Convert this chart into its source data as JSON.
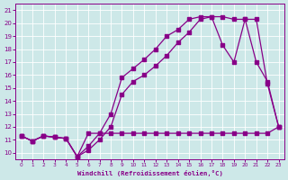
{
  "xlabel": "Windchill (Refroidissement éolien,°C)",
  "xlim": [
    -0.5,
    23.5
  ],
  "ylim": [
    9.5,
    21.5
  ],
  "xticks": [
    0,
    1,
    2,
    3,
    4,
    5,
    6,
    7,
    8,
    9,
    10,
    11,
    12,
    13,
    14,
    15,
    16,
    17,
    18,
    19,
    20,
    21,
    22,
    23
  ],
  "yticks": [
    10,
    11,
    12,
    13,
    14,
    15,
    16,
    17,
    18,
    19,
    20,
    21
  ],
  "bg_color": "#cde8e8",
  "line_color": "#880088",
  "grid_color": "#b8d8d8",
  "line1_x": [
    0,
    1,
    2,
    3,
    4,
    5,
    6,
    7,
    8,
    9,
    10,
    11,
    12,
    13,
    14,
    15,
    16,
    17,
    18,
    19,
    20,
    21,
    22,
    23
  ],
  "line1_y": [
    11.3,
    10.9,
    11.3,
    11.2,
    11.1,
    9.7,
    11.5,
    11.5,
    11.5,
    11.5,
    11.5,
    11.5,
    11.5,
    11.5,
    11.5,
    11.5,
    11.5,
    11.5,
    11.5,
    11.5,
    11.5,
    11.5,
    11.5,
    12.0
  ],
  "line2_x": [
    0,
    1,
    2,
    3,
    4,
    5,
    6,
    7,
    8,
    9,
    10,
    11,
    12,
    13,
    14,
    15,
    16,
    17,
    18,
    19,
    20,
    21,
    22,
    23
  ],
  "line2_y": [
    11.3,
    10.9,
    11.3,
    11.2,
    11.1,
    9.7,
    10.5,
    11.5,
    13.0,
    15.8,
    16.5,
    17.2,
    18.0,
    19.0,
    19.5,
    20.3,
    20.5,
    20.5,
    20.5,
    20.3,
    20.3,
    17.0,
    15.5,
    12.0
  ],
  "line3_x": [
    0,
    1,
    2,
    3,
    4,
    5,
    6,
    7,
    8,
    9,
    10,
    11,
    12,
    13,
    14,
    15,
    16,
    17,
    18,
    19,
    20,
    21,
    22,
    23
  ],
  "line3_y": [
    11.3,
    10.9,
    11.3,
    11.2,
    11.1,
    9.7,
    10.2,
    11.0,
    12.0,
    14.5,
    15.5,
    16.0,
    16.7,
    17.5,
    18.5,
    19.3,
    20.3,
    20.5,
    18.3,
    17.0,
    20.3,
    20.3,
    15.3,
    12.0
  ]
}
